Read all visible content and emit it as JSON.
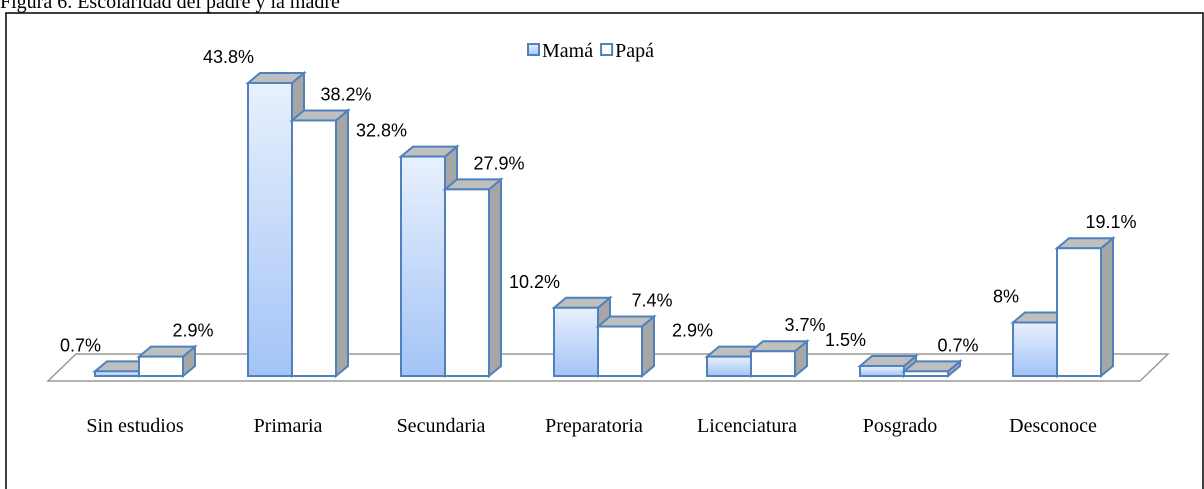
{
  "chart_data": {
    "type": "bar3d",
    "title": "Figura 6. Escolaridad del padre y la madre",
    "categories": [
      "Sin estudios",
      "Primaria",
      "Secundaria",
      "Preparatoria",
      "Licenciatura",
      "Posgrado",
      "Desconoce"
    ],
    "series": [
      {
        "name": "Mamá",
        "color": "#a3c4f6",
        "values": [
          0.7,
          43.8,
          32.8,
          10.2,
          2.9,
          1.5,
          8
        ],
        "value_labels": [
          "0.7%",
          "43.8%",
          "32.8%",
          "10.2%",
          "2.9%",
          "1.5%",
          "8%"
        ]
      },
      {
        "name": "Papá",
        "color": "#ffffff",
        "values": [
          2.9,
          38.2,
          27.9,
          7.4,
          3.7,
          0.7,
          19.1
        ],
        "value_labels": [
          "2.9%",
          "38.2%",
          "27.9%",
          "7.4%",
          "3.7%",
          "0.7%",
          "19.1%"
        ]
      }
    ],
    "legend": "top"
  }
}
